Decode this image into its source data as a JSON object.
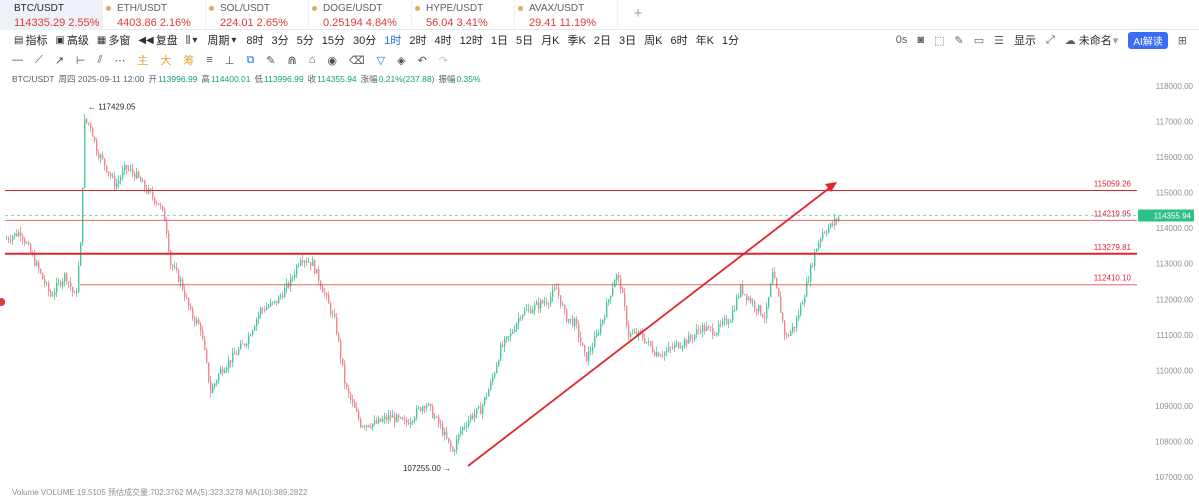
{
  "tickers": [
    {
      "symbol": "BTC/USDT",
      "price": "114335.29",
      "change": "2.55%",
      "active": true
    },
    {
      "symbol": "ETH/USDT",
      "price": "4403.86",
      "change": "2.16%"
    },
    {
      "symbol": "SOL/USDT",
      "price": "224.01",
      "change": "2.65%"
    },
    {
      "symbol": "DOGE/USDT",
      "price": "0.25194",
      "change": "4.84%"
    },
    {
      "symbol": "HYPE/USDT",
      "price": "56.04",
      "change": "3.41%"
    },
    {
      "symbol": "AVAX/USDT",
      "price": "29.41",
      "change": "11.19%"
    }
  ],
  "toolbar": {
    "indicators": "指标",
    "advanced": "高级",
    "multi_window": "多窗",
    "replay": "复盘",
    "period": "周期",
    "intervals": [
      "8时",
      "3分",
      "5分",
      "15分",
      "30分",
      "1时",
      "2时",
      "4时",
      "12时",
      "1日",
      "5日",
      "月K",
      "季K",
      "2日",
      "3日",
      "周K",
      "6时",
      "年K",
      "1分"
    ],
    "active_interval": "1时",
    "countdown": "0s",
    "display": "显示",
    "unnamed": "未命名",
    "ai_read": "AI解读"
  },
  "drawtools": {
    "main": "主",
    "big": "大",
    "chips": "筹"
  },
  "info": {
    "pair": "BTC/USDT",
    "datetime": "周四 2025-09-11 12:00",
    "open_label": "开",
    "open": "113996.99",
    "high_label": "高",
    "high": "114400.01",
    "low_label": "低",
    "low": "113996.99",
    "close_label": "收",
    "close": "114355.94",
    "change_label": "涨幅",
    "change": "0.21%(237.88)",
    "amp_label": "振幅",
    "amp": "0.35%"
  },
  "chart": {
    "y_ticks": [
      "118000.00",
      "117000.00",
      "116000.00",
      "115000.00",
      "114000.00",
      "113000.00",
      "112000.00",
      "111000.00",
      "110000.00",
      "109000.00",
      "108000.00",
      "107000.00"
    ],
    "last_price": "114355.94",
    "levels": [
      {
        "label": "115059.26",
        "value": 115059.26
      },
      {
        "label": "114219.95",
        "value": 114219.95
      },
      {
        "label": "113279.81",
        "value": 113279.81
      },
      {
        "label": "112410.10",
        "value": 112410.1
      }
    ],
    "high_marker": "117429.05",
    "low_marker": "107255.00",
    "up_color": "#47c99a",
    "down_color": "#f0868e",
    "line_color": "#e0262d"
  },
  "volume_line": "Volume  VOLUME:19.5105  预估成交量:702.3762  MA(5):323.3278  MA(10):389.2822"
}
